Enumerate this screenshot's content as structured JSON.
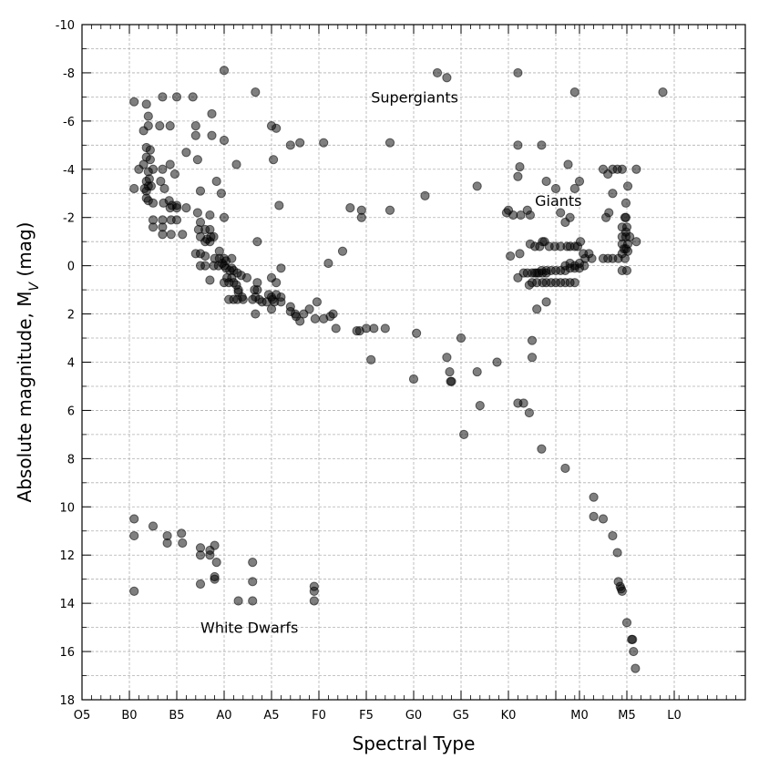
{
  "chart_data": {
    "type": "scatter",
    "xlabel": "Spectral Type",
    "ylabel": "Absolute magnitude, M",
    "ylabel_sub": "V",
    "ylabel_unit": " (mag)",
    "xlim": [
      0,
      70
    ],
    "ylim": [
      18,
      -10
    ],
    "y_inverted": true,
    "grid": true,
    "x_ticks": [
      {
        "pos": 0,
        "label": "O5"
      },
      {
        "pos": 5,
        "label": "B0"
      },
      {
        "pos": 10,
        "label": "B5"
      },
      {
        "pos": 15,
        "label": "A0"
      },
      {
        "pos": 20,
        "label": "A5"
      },
      {
        "pos": 25,
        "label": "F0"
      },
      {
        "pos": 30,
        "label": "F5"
      },
      {
        "pos": 35,
        "label": "G0"
      },
      {
        "pos": 40,
        "label": "G5"
      },
      {
        "pos": 45,
        "label": "K0"
      },
      {
        "pos": 50,
        "label": ""
      },
      {
        "pos": 52.5,
        "label": "M0"
      },
      {
        "pos": 57.5,
        "label": "M5"
      },
      {
        "pos": 62.5,
        "label": "L0"
      }
    ],
    "y_ticks": [
      -10,
      -8,
      -6,
      -4,
      -2,
      0,
      2,
      4,
      6,
      8,
      10,
      12,
      14,
      16,
      18
    ],
    "annotations": [
      {
        "text": "Supergiants",
        "x": 30.5,
        "y": -7.0
      },
      {
        "text": "Giants",
        "x": 47.8,
        "y": -2.7
      },
      {
        "text": "White Dwarfs",
        "x": 12.5,
        "y": 15.0
      }
    ],
    "points": [
      [
        5.5,
        -6.8
      ],
      [
        6.8,
        -6.7
      ],
      [
        7.0,
        -6.2
      ],
      [
        8.5,
        -7.0
      ],
      [
        10.0,
        -7.0
      ],
      [
        11.7,
        -7.0
      ],
      [
        15.0,
        -8.1
      ],
      [
        18.3,
        -7.2
      ],
      [
        8.2,
        -5.8
      ],
      [
        7.0,
        -5.8
      ],
      [
        6.5,
        -5.6
      ],
      [
        9.3,
        -5.8
      ],
      [
        12.0,
        -5.8
      ],
      [
        12.0,
        -5.4
      ],
      [
        13.7,
        -6.3
      ],
      [
        13.7,
        -5.4
      ],
      [
        15.0,
        -5.2
      ],
      [
        20.0,
        -5.8
      ],
      [
        20.5,
        -5.7
      ],
      [
        22.0,
        -5.0
      ],
      [
        23.0,
        -5.1
      ],
      [
        25.5,
        -5.1
      ],
      [
        32.5,
        -5.1
      ],
      [
        37.5,
        -8.0
      ],
      [
        38.5,
        -7.8
      ],
      [
        46.0,
        -8.0
      ],
      [
        52.0,
        -7.2
      ],
      [
        61.3,
        -7.2
      ],
      [
        6.8,
        -4.9
      ],
      [
        7.2,
        -4.8
      ],
      [
        6.8,
        -4.5
      ],
      [
        7.2,
        -4.4
      ],
      [
        6.5,
        -4.2
      ],
      [
        6.0,
        -4.0
      ],
      [
        7.0,
        -3.9
      ],
      [
        7.5,
        -4.0
      ],
      [
        8.5,
        -4.0
      ],
      [
        9.3,
        -4.2
      ],
      [
        9.8,
        -3.8
      ],
      [
        11.0,
        -4.7
      ],
      [
        12.2,
        -4.4
      ],
      [
        16.3,
        -4.2
      ],
      [
        20.2,
        -4.4
      ],
      [
        5.5,
        -3.2
      ],
      [
        6.6,
        -3.2
      ],
      [
        6.8,
        -3.1
      ],
      [
        7.0,
        -3.3
      ],
      [
        7.3,
        -3.3
      ],
      [
        6.8,
        -3.5
      ],
      [
        7.1,
        -3.6
      ],
      [
        8.3,
        -3.5
      ],
      [
        8.7,
        -3.2
      ],
      [
        6.8,
        -2.8
      ],
      [
        7.0,
        -2.7
      ],
      [
        7.5,
        -2.6
      ],
      [
        8.6,
        -2.6
      ],
      [
        9.2,
        -2.7
      ],
      [
        9.5,
        -2.5
      ],
      [
        10.0,
        -2.5
      ],
      [
        10.0,
        -2.4
      ],
      [
        9.3,
        -2.4
      ],
      [
        11.0,
        -2.4
      ],
      [
        12.5,
        -3.1
      ],
      [
        14.2,
        -3.5
      ],
      [
        14.7,
        -3.0
      ],
      [
        12.2,
        -2.2
      ],
      [
        20.8,
        -2.5
      ],
      [
        15.0,
        -2.0
      ],
      [
        7.5,
        -1.9
      ],
      [
        8.5,
        -1.9
      ],
      [
        9.4,
        -1.9
      ],
      [
        10.0,
        -1.9
      ],
      [
        12.5,
        -1.8
      ],
      [
        13.5,
        -2.1
      ],
      [
        7.5,
        -1.6
      ],
      [
        8.5,
        -1.6
      ],
      [
        8.5,
        -1.3
      ],
      [
        9.4,
        -1.3
      ],
      [
        10.6,
        -1.3
      ],
      [
        12.3,
        -1.5
      ],
      [
        13.0,
        -1.5
      ],
      [
        13.5,
        -1.5
      ],
      [
        12.5,
        -1.2
      ],
      [
        13.2,
        -1.1
      ],
      [
        13.6,
        -1.2
      ],
      [
        13.9,
        -1.2
      ],
      [
        13.0,
        -1.0
      ],
      [
        13.5,
        -1.0
      ],
      [
        18.5,
        -1.0
      ],
      [
        12.0,
        -0.5
      ],
      [
        12.5,
        -0.5
      ],
      [
        14.5,
        -0.6
      ],
      [
        13.0,
        -0.4
      ],
      [
        14.0,
        -0.3
      ],
      [
        14.5,
        -0.3
      ],
      [
        15.0,
        -0.3
      ],
      [
        15.8,
        -0.3
      ],
      [
        12.5,
        0.0
      ],
      [
        13.0,
        0.0
      ],
      [
        13.9,
        0.0
      ],
      [
        14.4,
        0.0
      ],
      [
        14.8,
        -0.1
      ],
      [
        15.2,
        -0.2
      ],
      [
        15.0,
        0.0
      ],
      [
        15.2,
        0.1
      ],
      [
        15.6,
        0.2
      ],
      [
        15.8,
        0.1
      ],
      [
        16.0,
        0.2
      ],
      [
        16.4,
        0.3
      ],
      [
        15.3,
        0.5
      ],
      [
        15.8,
        0.5
      ],
      [
        13.5,
        0.6
      ],
      [
        15.0,
        0.7
      ],
      [
        15.5,
        0.7
      ],
      [
        16.0,
        0.7
      ],
      [
        16.8,
        0.4
      ],
      [
        17.4,
        0.5
      ],
      [
        16.3,
        0.8
      ],
      [
        18.5,
        0.7
      ],
      [
        20.0,
        0.5
      ],
      [
        20.5,
        0.7
      ],
      [
        21.0,
        0.1
      ],
      [
        21.0,
        1.3
      ],
      [
        16.5,
        1.0
      ],
      [
        16.0,
        1.4
      ],
      [
        15.5,
        1.4
      ],
      [
        16.4,
        1.4
      ],
      [
        16.9,
        1.3
      ],
      [
        17.0,
        1.4
      ],
      [
        16.5,
        1.1
      ],
      [
        18.0,
        1.4
      ],
      [
        18.3,
        1.3
      ],
      [
        18.5,
        1.0
      ],
      [
        18.7,
        1.4
      ],
      [
        19.0,
        1.5
      ],
      [
        19.5,
        1.5
      ],
      [
        20.0,
        1.3
      ],
      [
        20.1,
        1.4
      ],
      [
        20.3,
        1.5
      ],
      [
        20.5,
        1.2
      ],
      [
        21.0,
        1.5
      ],
      [
        19.7,
        1.2
      ],
      [
        18.2,
        1.0
      ],
      [
        20.0,
        1.8
      ],
      [
        18.3,
        2.0
      ],
      [
        22.0,
        1.7
      ],
      [
        22.5,
        2.0
      ],
      [
        22.0,
        1.9
      ],
      [
        22.6,
        2.1
      ],
      [
        23.0,
        2.3
      ],
      [
        23.4,
        2.0
      ],
      [
        24.0,
        1.8
      ],
      [
        24.8,
        1.5
      ],
      [
        24.6,
        2.2
      ],
      [
        25.5,
        2.2
      ],
      [
        26.2,
        2.1
      ],
      [
        26.5,
        2.0
      ],
      [
        26.8,
        2.6
      ],
      [
        29.0,
        2.7
      ],
      [
        29.3,
        2.7
      ],
      [
        30.0,
        2.6
      ],
      [
        30.8,
        2.6
      ],
      [
        32.0,
        2.6
      ],
      [
        30.5,
        3.9
      ],
      [
        35.3,
        2.8
      ],
      [
        38.5,
        3.8
      ],
      [
        38.8,
        4.4
      ],
      [
        38.9,
        4.8
      ],
      [
        39.0,
        4.8
      ],
      [
        40.0,
        3.0
      ],
      [
        35.0,
        4.7
      ],
      [
        40.3,
        7.0
      ],
      [
        43.8,
        4.0
      ],
      [
        41.7,
        4.4
      ],
      [
        42.0,
        5.8
      ],
      [
        26.0,
        -0.1
      ],
      [
        27.5,
        -0.6
      ],
      [
        28.3,
        -2.4
      ],
      [
        29.5,
        -2.3
      ],
      [
        29.5,
        -2.0
      ],
      [
        32.5,
        -2.3
      ],
      [
        36.2,
        -2.9
      ],
      [
        41.7,
        -3.3
      ],
      [
        46.0,
        0.5
      ],
      [
        46.6,
        0.3
      ],
      [
        45.2,
        -0.4
      ],
      [
        46.2,
        -0.5
      ],
      [
        44.8,
        -2.2
      ],
      [
        45.0,
        -2.3
      ],
      [
        45.5,
        -2.1
      ],
      [
        46.3,
        -2.1
      ],
      [
        47.0,
        -2.3
      ],
      [
        47.3,
        -2.1
      ],
      [
        46.0,
        -3.7
      ],
      [
        46.2,
        -4.1
      ],
      [
        46.0,
        -5.0
      ],
      [
        48.5,
        -5.0
      ],
      [
        49.0,
        -3.5
      ],
      [
        50.0,
        -3.2
      ],
      [
        50.5,
        -2.2
      ],
      [
        51.0,
        -1.8
      ],
      [
        51.5,
        -2.0
      ],
      [
        52.0,
        -3.2
      ],
      [
        52.5,
        -3.5
      ],
      [
        51.3,
        -4.2
      ],
      [
        55.0,
        -4.0
      ],
      [
        56.0,
        -4.0
      ],
      [
        55.5,
        -3.8
      ],
      [
        56.5,
        -4.0
      ],
      [
        57.0,
        -4.0
      ],
      [
        58.5,
        -4.0
      ],
      [
        55.6,
        -2.2
      ],
      [
        55.3,
        -2.0
      ],
      [
        56.0,
        -3.0
      ],
      [
        57.4,
        -2.6
      ],
      [
        57.6,
        -3.3
      ],
      [
        57.3,
        -2.0
      ],
      [
        57.4,
        -2.0
      ],
      [
        47.3,
        -0.9
      ],
      [
        47.8,
        -0.8
      ],
      [
        48.3,
        -0.8
      ],
      [
        48.6,
        -1.0
      ],
      [
        48.8,
        -1.0
      ],
      [
        49.3,
        -0.8
      ],
      [
        49.9,
        -0.8
      ],
      [
        50.5,
        -0.8
      ],
      [
        51.2,
        -0.8
      ],
      [
        51.5,
        -0.8
      ],
      [
        52.0,
        -0.8
      ],
      [
        52.6,
        -1.0
      ],
      [
        52.3,
        -0.8
      ],
      [
        52.9,
        -0.5
      ],
      [
        53.1,
        -0.3
      ],
      [
        53.5,
        -0.5
      ],
      [
        53.8,
        -0.3
      ],
      [
        53.0,
        0.0
      ],
      [
        51.0,
        0.0
      ],
      [
        51.5,
        -0.1
      ],
      [
        52.0,
        0.0
      ],
      [
        52.5,
        -0.1
      ],
      [
        47.0,
        0.3
      ],
      [
        47.5,
        0.3
      ],
      [
        47.8,
        0.3
      ],
      [
        48.2,
        0.3
      ],
      [
        48.6,
        0.3
      ],
      [
        49.0,
        0.3
      ],
      [
        48.0,
        0.3
      ],
      [
        48.5,
        0.2
      ],
      [
        49.0,
        0.2
      ],
      [
        49.5,
        0.2
      ],
      [
        50.0,
        0.2
      ],
      [
        50.5,
        0.2
      ],
      [
        51.0,
        0.2
      ],
      [
        51.5,
        0.1
      ],
      [
        52.0,
        0.1
      ],
      [
        52.5,
        0.1
      ],
      [
        47.5,
        0.7
      ],
      [
        48.0,
        0.7
      ],
      [
        48.6,
        0.7
      ],
      [
        49.0,
        0.7
      ],
      [
        49.5,
        0.7
      ],
      [
        50.0,
        0.7
      ],
      [
        50.5,
        0.7
      ],
      [
        51.0,
        0.7
      ],
      [
        51.5,
        0.7
      ],
      [
        52.0,
        0.7
      ],
      [
        47.2,
        0.8
      ],
      [
        48.0,
        1.8
      ],
      [
        49.0,
        1.5
      ],
      [
        47.5,
        3.1
      ],
      [
        47.5,
        3.8
      ],
      [
        55.5,
        -0.3
      ],
      [
        56.0,
        -0.3
      ],
      [
        56.6,
        -0.3
      ],
      [
        57.0,
        -0.5
      ],
      [
        57.0,
        -0.9
      ],
      [
        57.2,
        -0.7
      ],
      [
        57.6,
        -0.9
      ],
      [
        57.0,
        -1.2
      ],
      [
        57.4,
        -1.4
      ],
      [
        57.5,
        -1.6
      ],
      [
        57.8,
        -1.2
      ],
      [
        58.5,
        -1.0
      ],
      [
        57.4,
        -0.7
      ],
      [
        57.6,
        -0.6
      ],
      [
        57.0,
        -1.6
      ],
      [
        57.4,
        -1.2
      ],
      [
        57.0,
        0.2
      ],
      [
        57.5,
        0.2
      ],
      [
        57.3,
        -0.3
      ],
      [
        55.0,
        -0.3
      ],
      [
        46.6,
        5.7
      ],
      [
        46.0,
        5.7
      ],
      [
        47.2,
        6.1
      ],
      [
        48.5,
        7.6
      ],
      [
        51.0,
        8.4
      ],
      [
        54.0,
        9.6
      ],
      [
        54.0,
        10.4
      ],
      [
        55.0,
        10.5
      ],
      [
        56.0,
        11.2
      ],
      [
        56.5,
        11.9
      ],
      [
        56.6,
        13.1
      ],
      [
        56.8,
        13.3
      ],
      [
        56.9,
        13.4
      ],
      [
        57.0,
        13.5
      ],
      [
        57.5,
        14.8
      ],
      [
        58.0,
        15.5
      ],
      [
        58.1,
        15.5
      ],
      [
        58.2,
        16.0
      ],
      [
        58.4,
        16.7
      ],
      [
        5.5,
        10.5
      ],
      [
        5.5,
        11.2
      ],
      [
        7.5,
        10.8
      ],
      [
        9.0,
        11.2
      ],
      [
        9.0,
        11.5
      ],
      [
        10.5,
        11.1
      ],
      [
        10.6,
        11.5
      ],
      [
        12.5,
        11.7
      ],
      [
        12.5,
        12.0
      ],
      [
        13.5,
        11.8
      ],
      [
        13.5,
        12.0
      ],
      [
        14.0,
        11.6
      ],
      [
        14.2,
        12.3
      ],
      [
        14.0,
        12.9
      ],
      [
        14.0,
        13.0
      ],
      [
        12.5,
        13.2
      ],
      [
        5.5,
        13.5
      ],
      [
        18.0,
        12.3
      ],
      [
        18.0,
        13.1
      ],
      [
        16.5,
        13.9
      ],
      [
        18.0,
        13.9
      ],
      [
        24.5,
        13.3
      ],
      [
        24.5,
        13.5
      ],
      [
        24.5,
        13.9
      ]
    ]
  }
}
